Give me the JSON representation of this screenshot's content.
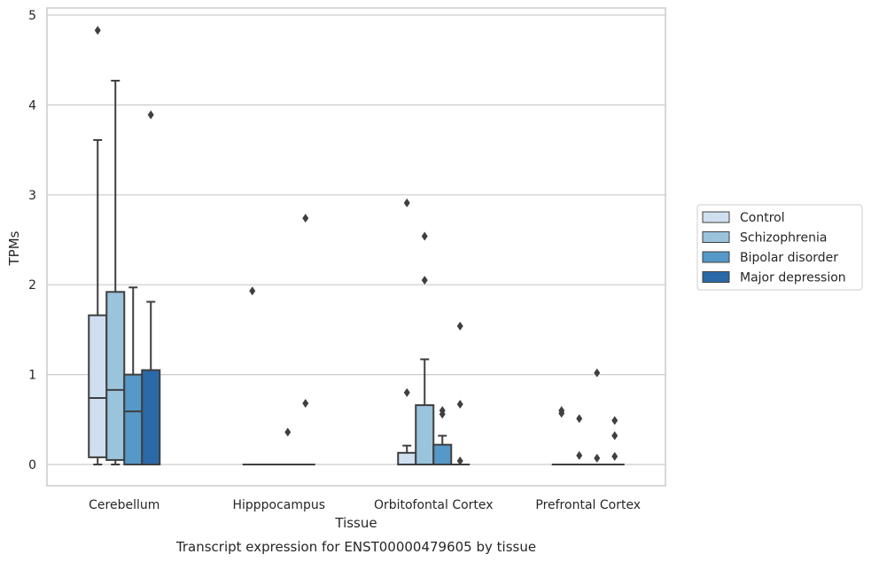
{
  "chart_data": {
    "type": "box",
    "xlabel": "Tissue",
    "ylabel": "TPMs",
    "caption": "Transcript expression for ENST00000479605 by tissue",
    "ylim": [
      -0.23,
      5.08
    ],
    "yticks": [
      0,
      1,
      2,
      3,
      4,
      5
    ],
    "grid": "horizontal",
    "legend_position": "right",
    "categories": [
      "Cerebellum",
      "Hipppocampus",
      "Orbitofontal Cortex",
      "Prefrontal Cortex"
    ],
    "series": [
      {
        "name": "Control",
        "color": "#cfdff0",
        "boxes": [
          {
            "whislo": 0,
            "q1": 0.08,
            "med": 0.74,
            "q3": 1.66,
            "whishi": 3.61,
            "fliers": [
              4.83
            ]
          },
          {
            "whislo": 0,
            "q1": 0,
            "med": 0,
            "q3": 0,
            "whishi": 0,
            "fliers": [
              1.93
            ]
          },
          {
            "whislo": 0,
            "q1": 0,
            "med": 0,
            "q3": 0.13,
            "whishi": 0.21,
            "fliers": [
              2.91,
              0.8
            ]
          },
          {
            "whislo": 0,
            "q1": 0,
            "med": 0,
            "q3": 0,
            "whishi": 0,
            "fliers": [
              0.6,
              0.57
            ]
          }
        ]
      },
      {
        "name": "Schizophrenia",
        "color": "#9ac3dc",
        "boxes": [
          {
            "whislo": 0,
            "q1": 0.05,
            "med": 0.83,
            "q3": 1.92,
            "whishi": 4.27,
            "fliers": []
          },
          {
            "whislo": 0,
            "q1": 0,
            "med": 0,
            "q3": 0,
            "whishi": 0,
            "fliers": []
          },
          {
            "whislo": 0,
            "q1": 0,
            "med": 0,
            "q3": 0.66,
            "whishi": 1.17,
            "fliers": [
              2.54,
              2.05
            ]
          },
          {
            "whislo": 0,
            "q1": 0,
            "med": 0,
            "q3": 0,
            "whishi": 0,
            "fliers": [
              0.51,
              0.1
            ]
          }
        ]
      },
      {
        "name": "Bipolar disorder",
        "color": "#5698c8",
        "boxes": [
          {
            "whislo": 0,
            "q1": 0,
            "med": 0.59,
            "q3": 1.0,
            "whishi": 1.97,
            "fliers": []
          },
          {
            "whislo": 0,
            "q1": 0,
            "med": 0,
            "q3": 0,
            "whishi": 0,
            "fliers": [
              0.36
            ]
          },
          {
            "whislo": 0,
            "q1": 0,
            "med": 0,
            "q3": 0.22,
            "whishi": 0.32,
            "fliers": [
              0.6,
              0.56
            ]
          },
          {
            "whislo": 0,
            "q1": 0,
            "med": 0,
            "q3": 0,
            "whishi": 0,
            "fliers": [
              1.02,
              0.07
            ]
          }
        ]
      },
      {
        "name": "Major depression",
        "color": "#2b6aa8",
        "boxes": [
          {
            "whislo": 0,
            "q1": 0,
            "med": 0,
            "q3": 1.05,
            "whishi": 1.81,
            "fliers": [
              3.89
            ]
          },
          {
            "whislo": 0,
            "q1": 0,
            "med": 0,
            "q3": 0,
            "whishi": 0,
            "fliers": [
              2.74,
              0.68
            ]
          },
          {
            "whislo": 0,
            "q1": 0,
            "med": 0,
            "q3": 0,
            "whishi": 0,
            "fliers": [
              1.54,
              0.67,
              0.04
            ]
          },
          {
            "whislo": 0,
            "q1": 0,
            "med": 0,
            "q3": 0,
            "whishi": 0,
            "fliers": [
              0.49,
              0.32,
              0.09
            ]
          }
        ]
      }
    ]
  }
}
